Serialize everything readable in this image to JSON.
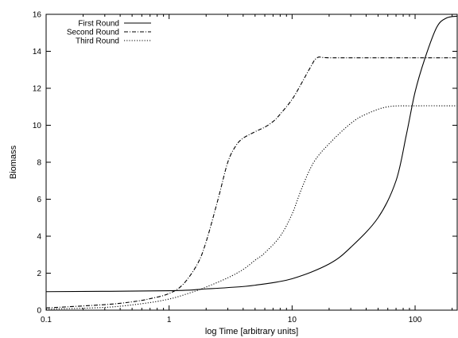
{
  "chart_data": {
    "type": "line",
    "title": "",
    "xlabel": "log Time [arbitrary units]",
    "ylabel": "Biomass",
    "xscale": "log",
    "xlim": [
      0.1,
      220
    ],
    "ylim": [
      0,
      16
    ],
    "xticks": [
      {
        "value": 0.1,
        "label": "0.1"
      },
      {
        "value": 1,
        "label": "1"
      },
      {
        "value": 10,
        "label": "10"
      },
      {
        "value": 100,
        "label": "100"
      }
    ],
    "yticks": [
      0,
      2,
      4,
      6,
      8,
      10,
      12,
      14,
      16
    ],
    "grid": false,
    "legend_position": "top-left",
    "series": [
      {
        "name": "First Round",
        "style": "solid",
        "x": [
          0.1,
          1,
          2,
          3,
          5,
          10,
          20,
          30,
          50,
          70,
          85,
          100,
          120,
          150,
          180,
          220
        ],
        "y": [
          1.0,
          1.05,
          1.15,
          1.22,
          1.35,
          1.7,
          2.5,
          3.4,
          5.0,
          7.0,
          9.5,
          11.8,
          13.6,
          15.3,
          15.8,
          15.9
        ]
      },
      {
        "name": "Second Round",
        "style": "dashdot",
        "x": [
          0.1,
          0.3,
          0.5,
          0.7,
          1,
          1.3,
          1.7,
          2,
          2.5,
          3,
          3.5,
          4,
          5,
          6,
          7,
          8,
          10,
          12,
          14,
          16,
          20,
          50,
          100,
          220
        ],
        "y": [
          0.12,
          0.3,
          0.45,
          0.62,
          0.9,
          1.4,
          2.5,
          3.7,
          6.0,
          8.0,
          8.9,
          9.3,
          9.65,
          9.9,
          10.2,
          10.6,
          11.4,
          12.3,
          13.1,
          13.65,
          13.65,
          13.65,
          13.65,
          13.65
        ]
      },
      {
        "name": "Third Round",
        "style": "dotted",
        "x": [
          0.1,
          0.3,
          0.6,
          1,
          1.5,
          2,
          3,
          4,
          5,
          6,
          8,
          10,
          12,
          15,
          20,
          30,
          40,
          60,
          100,
          220
        ],
        "y": [
          0.05,
          0.15,
          0.35,
          0.6,
          0.95,
          1.25,
          1.75,
          2.2,
          2.7,
          3.1,
          4.0,
          5.2,
          6.6,
          8.0,
          9.0,
          10.1,
          10.6,
          11.0,
          11.05,
          11.05
        ]
      }
    ]
  }
}
